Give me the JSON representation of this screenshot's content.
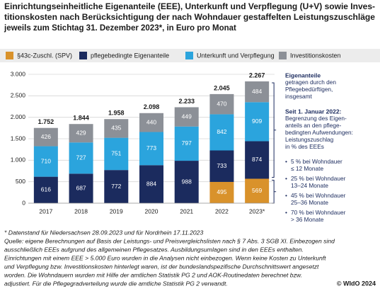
{
  "chart_data": {
    "type": "stacked-bar",
    "title_lines": [
      "Einrichtungseinheitliche Eigenanteile (EEE), Unterkunft und Verpflegung (U+V) sowie Inves-",
      "titionskosten nach Berücksichtigung der nach Wohndauer gestaffelten Leistungszuschläge",
      "jeweils zum Stichtag 31. Dezember 2023*, in Euro pro Monat"
    ],
    "categories": [
      "2017",
      "2018",
      "2019",
      "2020",
      "2021",
      "2022",
      "2023*"
    ],
    "series": [
      {
        "name": "§43c-Zuschl. (SPV)",
        "color": "#d9922b",
        "values": [
          null,
          null,
          null,
          null,
          null,
          495,
          569
        ]
      },
      {
        "name": "pflegebedingte Eigenanteile",
        "color": "#1b2b5e",
        "values": [
          616,
          687,
          772,
          884,
          988,
          733,
          874
        ]
      },
      {
        "name": "Unterkunft und Verpflegung",
        "color": "#2ba4dd",
        "values": [
          710,
          727,
          751,
          773,
          797,
          842,
          909
        ]
      },
      {
        "name": "Investitionskosten",
        "color": "#8c9097",
        "values": [
          426,
          429,
          435,
          440,
          449,
          470,
          484
        ]
      }
    ],
    "totals": {
      "values": [
        1752,
        1844,
        1958,
        2098,
        2233,
        2045,
        2267
      ],
      "value_labels": [
        "1.752",
        "1.844",
        "1.958",
        "2.098",
        "2.233",
        "2.045",
        "2.267"
      ]
    },
    "ylim": [
      0,
      3000
    ],
    "yticks": [
      0,
      500,
      {
        "value": 1000,
        "label": "1.000"
      },
      {
        "value": 1500,
        "label": "1.500"
      },
      {
        "value": 2000,
        "label": "2.000"
      },
      {
        "value": 2500,
        "label": "2.500"
      },
      {
        "value": 3000,
        "label": "3.000"
      }
    ],
    "grid": true,
    "annotations": [
      {
        "heading": "Eigenanteile",
        "lines": [
          "getragen durch den",
          "Pflegebedürftigen,",
          "insgesamt"
        ]
      },
      {
        "heading": "Seit 1. Januar 2022:",
        "lines": [
          "Begrenzung des Eigen-",
          "anteils an den pflege-",
          "bedingten Aufwendungen:",
          "Leistungszuschlag",
          "in % des EEEs"
        ]
      }
    ],
    "bullets": [
      [
        "5 % bei Wohndauer",
        "≤ 12 Monate"
      ],
      [
        "25 % bei Wohndauer",
        "13–24 Monate"
      ],
      [
        "45 % bei Wohndauer",
        "25–36 Monate"
      ],
      [
        "70 % bei Wohndauer",
        "> 36 Monate"
      ]
    ],
    "footnotes": [
      "*  Datenstand für Niedersachsen 28.09.2023 und für Nordrhein 17.11.2023",
      "Quelle: eigene Berechnungen auf Basis der Leistungs- und Preisvergleichslisten nach § 7 Abs. 3 SGB XI. Einbezogen sind",
      "ausschließlich EEEs aufgrund des allgemeinen Pflegesatzes. Ausbildungsumlagen sind in den EEEs enthalten.",
      "Einrichtungen mit einem EEE > 5.000 Euro wurden in die Analysen nicht einbezogen. Wenn keine Kosten zu Unterkunft",
      "und Verpflegung bzw. Investitionskosten hinterlegt waren, ist der bundeslandspezifische Durchschnittswert angesetzt",
      "worden. Die Wohndauern wurden mit Hilfe der amtlichen Statistik PG 2 und AOK-Routinedaten berechnet bzw.",
      "adjustiert. Für die Pflegegradverteilung wurde die amtliche Statistik PG 2 verwandt."
    ],
    "credit": "© WIdO 2024"
  }
}
